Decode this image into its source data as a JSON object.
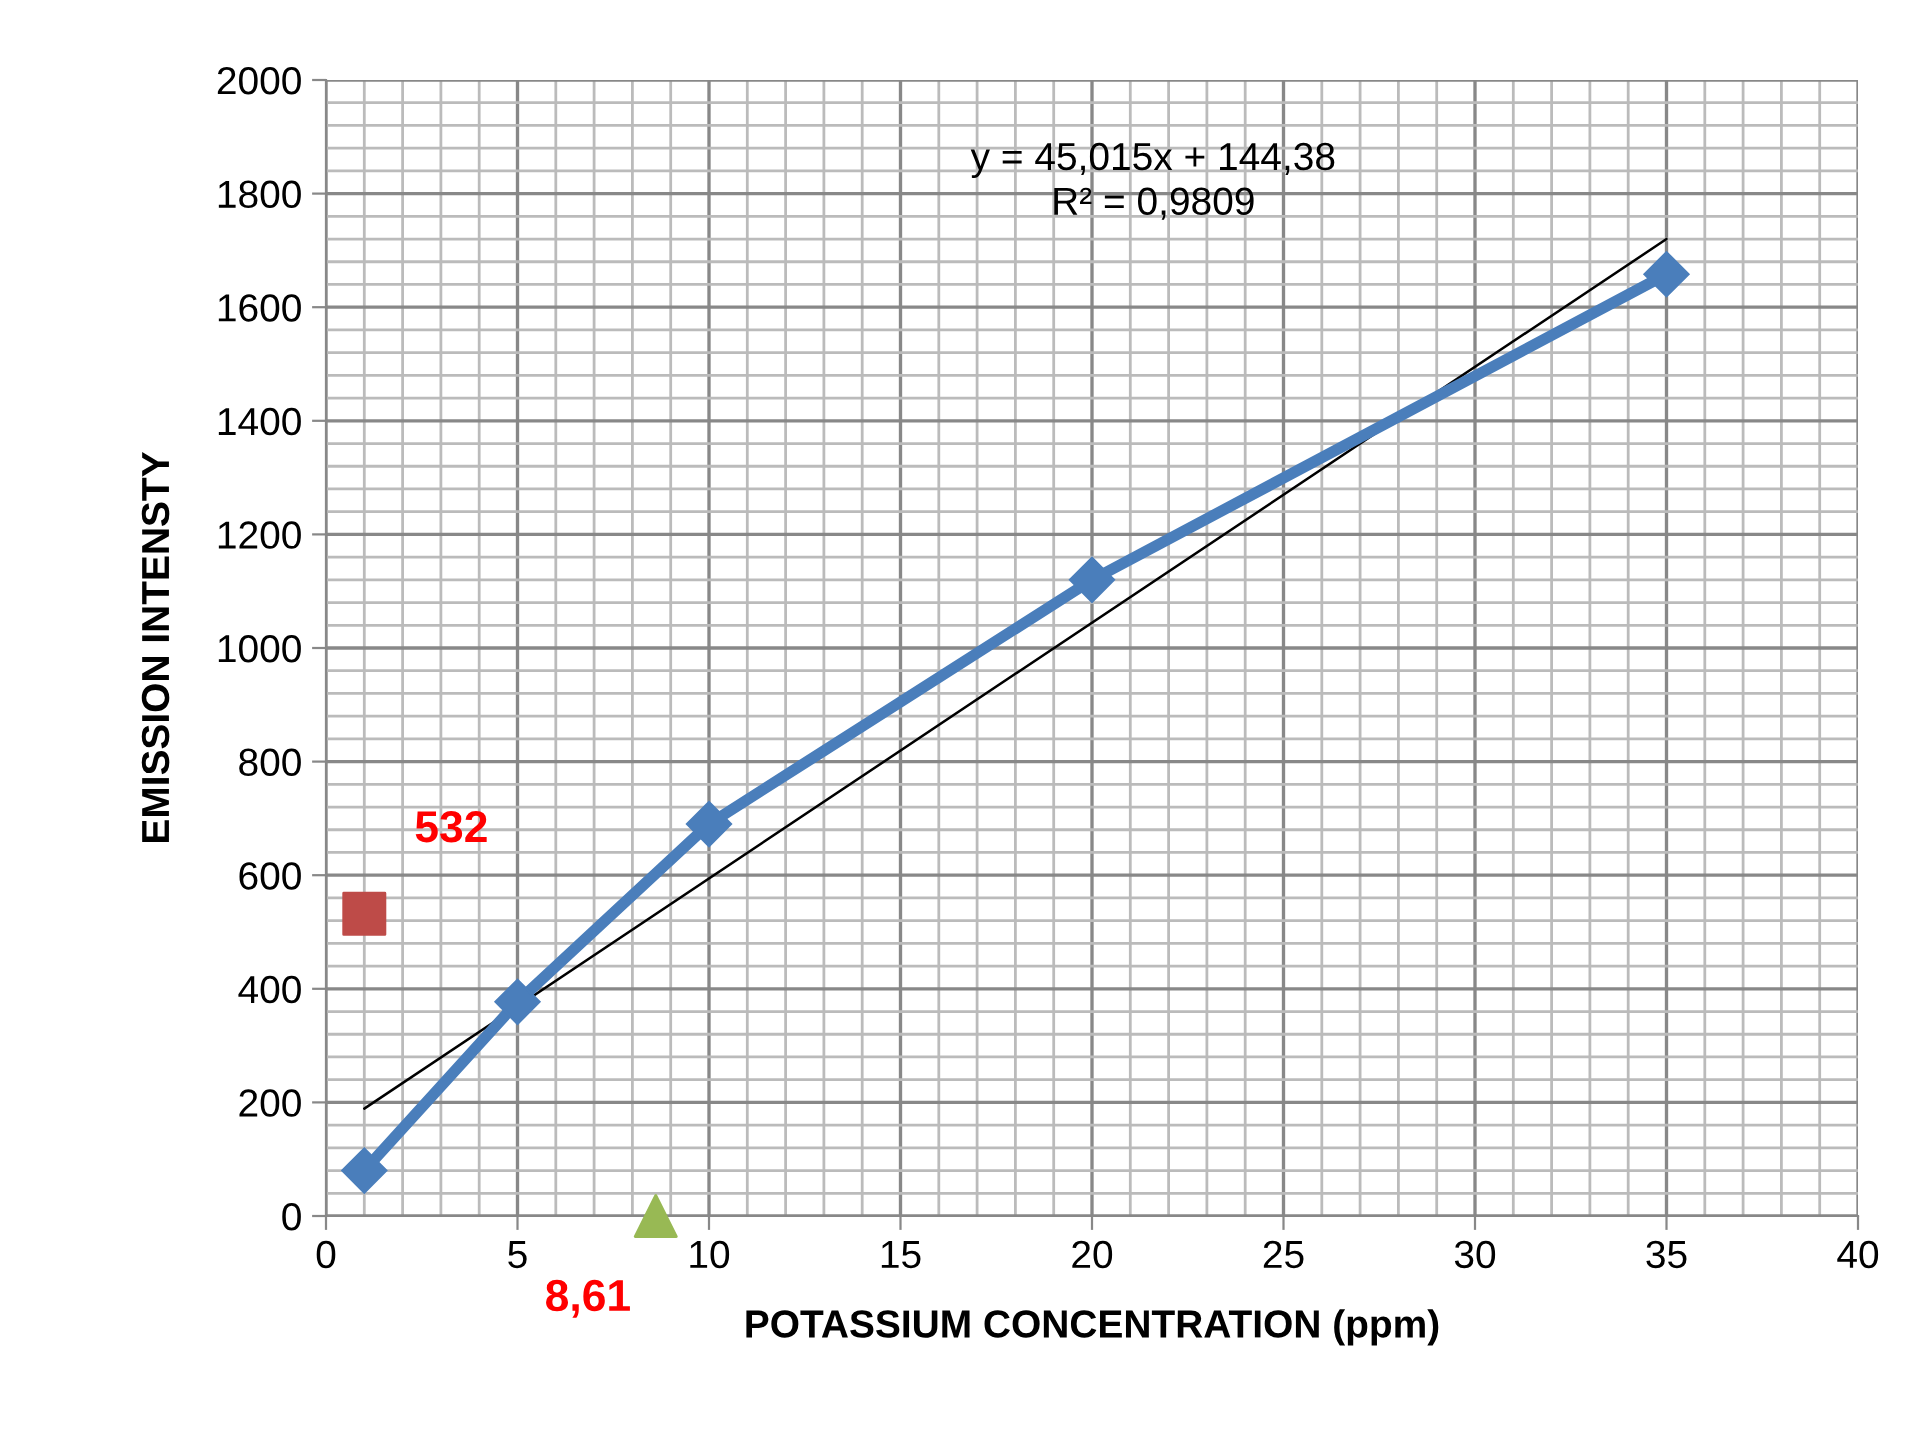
{
  "chart_data": {
    "type": "line",
    "xlabel": "POTASSIUM CONCENTRATION (ppm)",
    "ylabel": "EMISSION INTENSTY",
    "xlim": [
      0,
      40
    ],
    "xticks": [
      0,
      5,
      10,
      15,
      20,
      25,
      30,
      35,
      40
    ],
    "ylim": [
      0,
      2000
    ],
    "yticks": [
      0,
      200,
      400,
      600,
      800,
      1000,
      1200,
      1400,
      1600,
      1800,
      2000
    ],
    "grid": true,
    "legend": false,
    "series": [
      {
        "color": "#4a7ebb",
        "marker": "diamond",
        "x": [
          1,
          5,
          10,
          20,
          35
        ],
        "values": [
          80,
          377,
          690,
          1120,
          1658
        ]
      },
      {
        "color": "#000000",
        "marker": "none",
        "x": [
          1,
          35
        ],
        "values": [
          189,
          1720
        ]
      },
      {
        "type": "scatter",
        "color": "#be4b48",
        "marker": "square",
        "x": [
          1
        ],
        "values": [
          532
        ]
      },
      {
        "type": "scatter",
        "color": "#98b954",
        "marker": "triangle",
        "x": [
          8.61
        ],
        "values": [
          0
        ]
      }
    ],
    "annotations": [
      "y = 45,015x + 144,38\nR² = 0,9809",
      {
        "text": "532",
        "x": 1,
        "y": 532
      },
      {
        "text": "8,61",
        "x": 8.61,
        "y": 0
      }
    ]
  }
}
